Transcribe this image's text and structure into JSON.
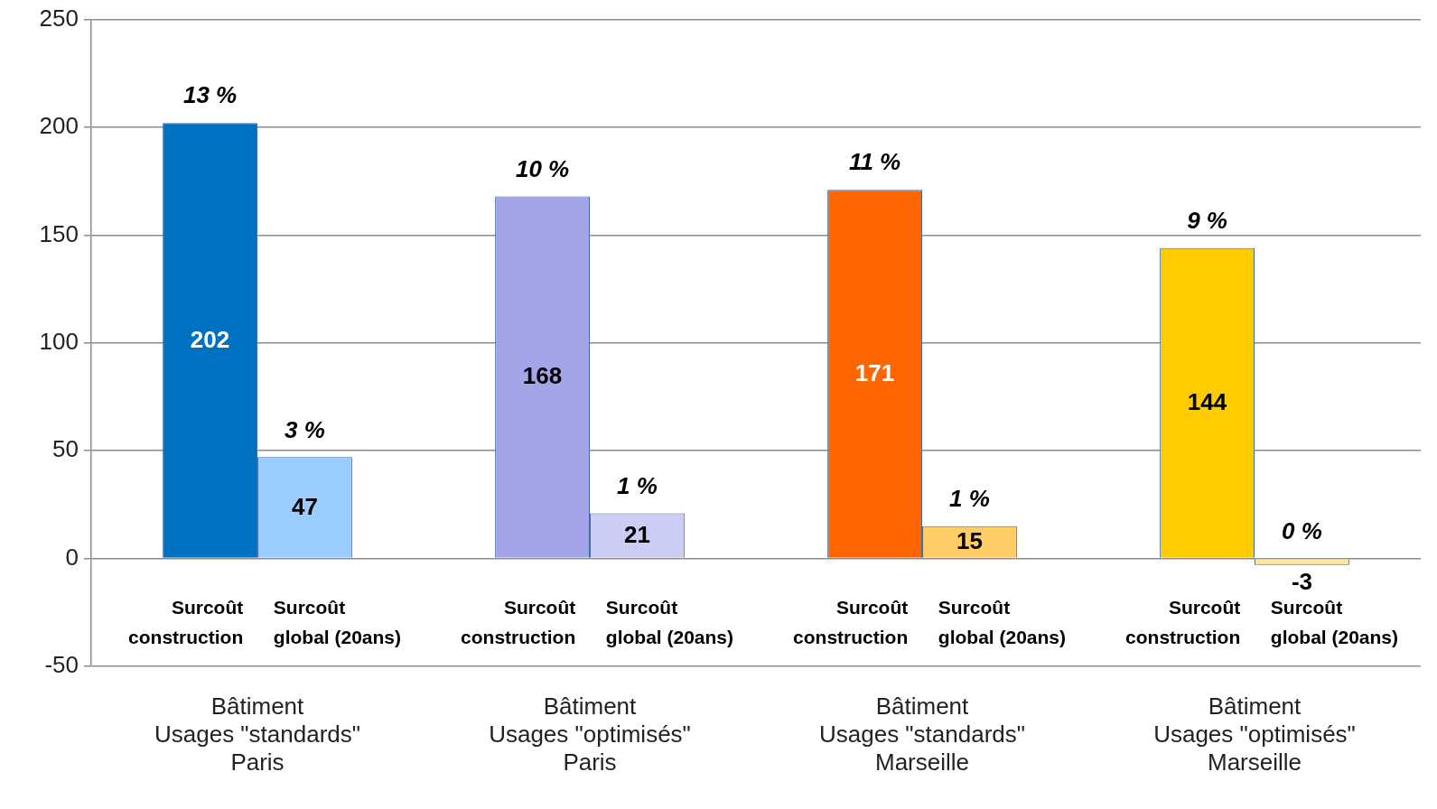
{
  "chart_data": {
    "type": "bar",
    "categories": [
      "Bâtiment\nUsages \"standards\"\nParis",
      "Bâtiment\nUsages \"optimisés\"\nParis",
      "Bâtiment\nUsages \"standards\"\nMarseille",
      "Bâtiment\nUsages \"optimisés\"\nMarseille"
    ],
    "series": [
      {
        "name": "Surcoût\nconstruction",
        "colors": [
          "#0070c0",
          "#a4a4e8",
          "#ff6600",
          "#ffcc00"
        ],
        "values": [
          202,
          168,
          171,
          144
        ]
      },
      {
        "name": "Surcoût\nglobal (20ans)",
        "colors": [
          "#99ccff",
          "#ccccf5",
          "#ffcc66",
          "#ffe699"
        ],
        "values": [
          47,
          21,
          15,
          -3
        ]
      }
    ],
    "annotations": [
      "13 %",
      "10 %",
      "11 %",
      "9 %",
      "3 %",
      "1 %",
      "1 %",
      "0 %"
    ],
    "ylim": [
      -50,
      250
    ],
    "yticks": [
      -50,
      0,
      50,
      100,
      150,
      200,
      250
    ],
    "grid": "y",
    "legend": false,
    "data_labels": true
  }
}
